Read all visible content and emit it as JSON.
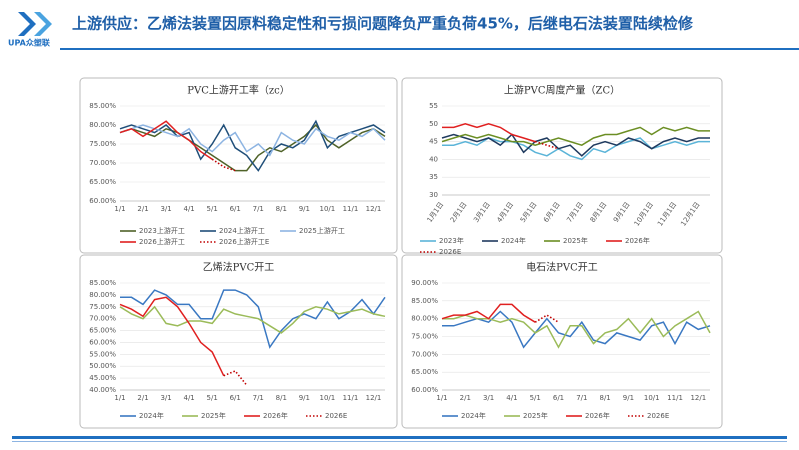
{
  "header": {
    "logo": "UPA众塑联",
    "title": "上游供应：乙烯法装置因原料稳定性和亏损问题降负严重负荷45%，后继电石法装置陆续检修"
  },
  "chart_data": [
    {
      "type": "line",
      "title": "PVC上游开工率（zc）",
      "categories": [
        "1/1",
        null,
        "2/1",
        null,
        "3/1",
        null,
        "4/1",
        null,
        "5/1",
        null,
        "6/1",
        null,
        "7/1",
        null,
        "8/1",
        null,
        "9/1",
        null,
        "10/1",
        null,
        "11/1",
        null,
        "12/1",
        null
      ],
      "ylim": [
        60,
        85
      ],
      "yticks": [
        {
          "value": 60,
          "label": "60.00%"
        },
        {
          "value": 65,
          "label": "65.00%"
        },
        {
          "value": 70,
          "label": "70.00%"
        },
        {
          "value": 75,
          "label": "75.00%"
        },
        {
          "value": 80,
          "label": "80.00%"
        },
        {
          "value": 85,
          "label": "85.00%"
        }
      ],
      "grid": true,
      "series": [
        {
          "name": "2023上游开工",
          "color": "#4f6228",
          "values": [
            78,
            79,
            78,
            77,
            79,
            78,
            76,
            74,
            72,
            70,
            68,
            68,
            72,
            74,
            73,
            75,
            77,
            80,
            76,
            74,
            76,
            78,
            79,
            77
          ]
        },
        {
          "name": "2024上游开工",
          "color": "#1f4e79",
          "values": [
            79,
            80,
            79,
            78,
            80,
            77,
            78,
            71,
            75,
            80,
            74,
            72,
            68,
            73,
            75,
            74,
            76,
            81,
            74,
            77,
            78,
            79,
            80,
            78
          ]
        },
        {
          "name": "2025上游开工",
          "color": "#8db4e2",
          "values": [
            78,
            79,
            80,
            79,
            78,
            77,
            79,
            75,
            73,
            76,
            78,
            73,
            75,
            72,
            78,
            76,
            75,
            79,
            77,
            76,
            78,
            77,
            79,
            76
          ]
        },
        {
          "name": "2026上游开工",
          "color": "#e02020",
          "values": [
            78,
            79,
            77,
            79,
            81,
            78,
            76,
            73,
            71,
            null,
            null,
            null,
            null,
            null,
            null,
            null,
            null,
            null,
            null,
            null,
            null,
            null,
            null,
            null
          ]
        },
        {
          "name": "2026上游开工E",
          "color": "#c00000",
          "dashed": true,
          "values": [
            null,
            null,
            null,
            null,
            null,
            null,
            null,
            null,
            71,
            69,
            68,
            null,
            null,
            null,
            null,
            null,
            null,
            null,
            null,
            null,
            null,
            null,
            null,
            null
          ]
        }
      ]
    },
    {
      "type": "line",
      "title": "上游PVC周度产量（ZC）",
      "categories": [
        "1月1日",
        null,
        "2月1日",
        null,
        "3月1日",
        null,
        "4月1日",
        null,
        "5月1日",
        null,
        "6月1日",
        null,
        "7月1日",
        null,
        "8月1日",
        null,
        "9月1日",
        null,
        "10月1日",
        null,
        "11月1日",
        null,
        "12月1日",
        null
      ],
      "ylim": [
        30,
        55
      ],
      "yticks": [
        30,
        35,
        40,
        45,
        50,
        55
      ],
      "grid": true,
      "series": [
        {
          "name": "2023年",
          "color": "#5bb4d8",
          "values": [
            44,
            44,
            45,
            44,
            46,
            45,
            45,
            44,
            42,
            41,
            43,
            41,
            40,
            43,
            42,
            44,
            45,
            46,
            43,
            44,
            45,
            44,
            45,
            45
          ]
        },
        {
          "name": "2024年",
          "color": "#1f3a5f",
          "values": [
            46,
            47,
            46,
            45,
            46,
            44,
            47,
            42,
            45,
            46,
            43,
            44,
            41,
            44,
            45,
            44,
            46,
            45,
            43,
            45,
            46,
            45,
            46,
            46
          ]
        },
        {
          "name": "2025年",
          "color": "#6b8e23",
          "values": [
            45,
            46,
            47,
            46,
            47,
            46,
            45,
            45,
            44,
            45,
            46,
            45,
            44,
            46,
            47,
            47,
            48,
            49,
            47,
            49,
            48,
            49,
            48,
            48
          ]
        },
        {
          "name": "2026年",
          "color": "#e02020",
          "values": [
            49,
            49,
            50,
            49,
            50,
            49,
            47,
            46,
            45,
            null,
            null,
            null,
            null,
            null,
            null,
            null,
            null,
            null,
            null,
            null,
            null,
            null,
            null,
            null
          ]
        },
        {
          "name": "2026E",
          "color": "#c00000",
          "dashed": true,
          "values": [
            null,
            null,
            null,
            null,
            null,
            null,
            null,
            null,
            45,
            44,
            43,
            null,
            null,
            null,
            null,
            null,
            null,
            null,
            null,
            null,
            null,
            null,
            null,
            null
          ]
        }
      ]
    },
    {
      "type": "line",
      "title": "乙烯法PVC开工",
      "categories": [
        "1/1",
        null,
        "2/1",
        null,
        "3/1",
        null,
        "4/1",
        null,
        "5/1",
        null,
        "6/1",
        null,
        "7/1",
        null,
        "8/1",
        null,
        "9/1",
        null,
        "10/1",
        null,
        "11/1",
        null,
        "12/1",
        null
      ],
      "ylim": [
        40,
        85
      ],
      "yticks": [
        {
          "value": 40,
          "label": "40.00%"
        },
        {
          "value": 45,
          "label": "45.00%"
        },
        {
          "value": 50,
          "label": "50.00%"
        },
        {
          "value": 55,
          "label": "55.00%"
        },
        {
          "value": 60,
          "label": "60.00%"
        },
        {
          "value": 65,
          "label": "65.00%"
        },
        {
          "value": 70,
          "label": "70.00%"
        },
        {
          "value": 75,
          "label": "75.00%"
        },
        {
          "value": 80,
          "label": "80.00%"
        },
        {
          "value": 85,
          "label": "85.00%"
        }
      ],
      "grid": true,
      "series": [
        {
          "name": "2024年",
          "color": "#3a78c2",
          "values": [
            79,
            79,
            76,
            82,
            80,
            76,
            76,
            70,
            70,
            82,
            82,
            80,
            75,
            58,
            65,
            70,
            72,
            70,
            77,
            70,
            73,
            78,
            72,
            79
          ]
        },
        {
          "name": "2025年",
          "color": "#9bbb59",
          "values": [
            75,
            72,
            70,
            75,
            68,
            67,
            69,
            69,
            68,
            74,
            72,
            71,
            70,
            67,
            64,
            68,
            73,
            75,
            74,
            72,
            73,
            74,
            72,
            71
          ]
        },
        {
          "name": "2026年",
          "color": "#e02020",
          "values": [
            76,
            74,
            71,
            78,
            79,
            75,
            68,
            60,
            56,
            46,
            null,
            null,
            null,
            null,
            null,
            null,
            null,
            null,
            null,
            null,
            null,
            null,
            null,
            null
          ]
        },
        {
          "name": "2026E",
          "color": "#c00000",
          "dashed": true,
          "values": [
            null,
            null,
            null,
            null,
            null,
            null,
            null,
            null,
            null,
            46,
            48,
            42,
            null,
            null,
            null,
            null,
            null,
            null,
            null,
            null,
            null,
            null,
            null,
            null
          ]
        }
      ]
    },
    {
      "type": "line",
      "title": "电石法PVC开工",
      "categories": [
        "1/1",
        null,
        "2/1",
        null,
        "3/1",
        null,
        "4/1",
        null,
        "5/1",
        null,
        "6/1",
        null,
        "7/1",
        null,
        "8/1",
        null,
        "9/1",
        null,
        "10/1",
        null,
        "11/1",
        null,
        "12/1",
        null
      ],
      "ylim": [
        60,
        90
      ],
      "yticks": [
        {
          "value": 60,
          "label": "60.00%"
        },
        {
          "value": 65,
          "label": "65.00%"
        },
        {
          "value": 70,
          "label": "70.00%"
        },
        {
          "value": 75,
          "label": "75.00%"
        },
        {
          "value": 80,
          "label": "80.00%"
        },
        {
          "value": 85,
          "label": "85.00%"
        },
        {
          "value": 90,
          "label": "90.00%"
        }
      ],
      "grid": true,
      "series": [
        {
          "name": "2024年",
          "color": "#3a78c2",
          "values": [
            78,
            78,
            79,
            80,
            79,
            82,
            79,
            72,
            76,
            80,
            76,
            75,
            79,
            74,
            73,
            76,
            75,
            74,
            78,
            79,
            73,
            79,
            77,
            78
          ]
        },
        {
          "name": "2025年",
          "color": "#9bbb59",
          "values": [
            80,
            80,
            81,
            80,
            80,
            79,
            80,
            79,
            76,
            78,
            72,
            78,
            78,
            73,
            76,
            77,
            80,
            76,
            80,
            75,
            78,
            80,
            82,
            76
          ]
        },
        {
          "name": "2026年",
          "color": "#e02020",
          "values": [
            80,
            81,
            81,
            82,
            80,
            84,
            84,
            81,
            79,
            null,
            null,
            null,
            null,
            null,
            null,
            null,
            null,
            null,
            null,
            null,
            null,
            null,
            null,
            null
          ]
        },
        {
          "name": "2026E",
          "color": "#c00000",
          "dashed": true,
          "values": [
            null,
            null,
            null,
            null,
            null,
            null,
            null,
            null,
            79,
            81,
            79,
            null,
            null,
            null,
            null,
            null,
            null,
            null,
            null,
            null,
            null,
            null,
            null,
            null
          ]
        }
      ]
    }
  ]
}
